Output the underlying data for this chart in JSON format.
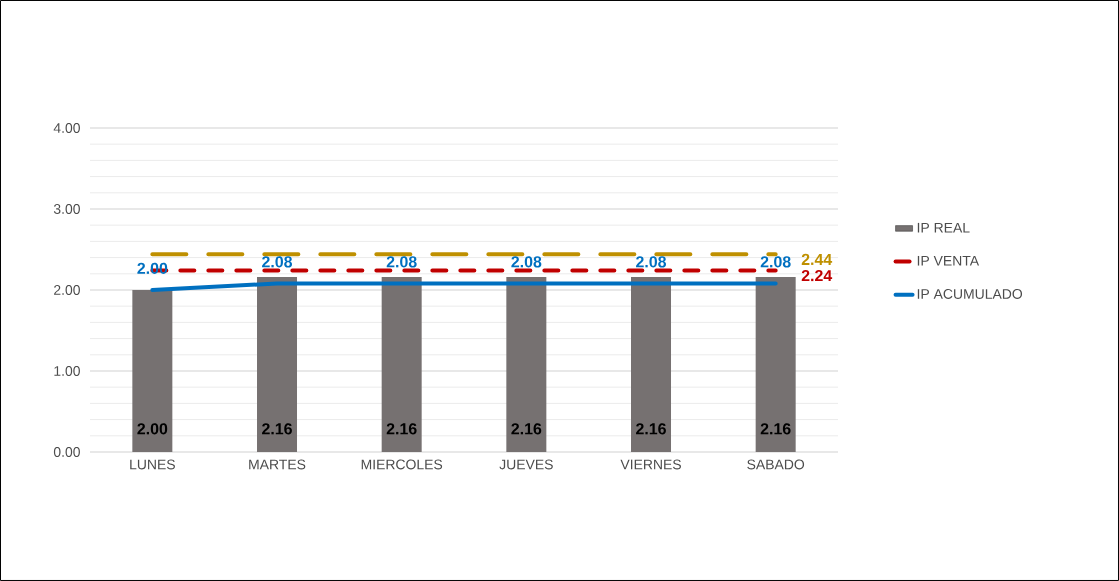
{
  "chart_data": {
    "type": "bar",
    "categories": [
      "LUNES",
      "MARTES",
      "MIERCOLES",
      "JUEVES",
      "VIERNES",
      "SABADO"
    ],
    "series": [
      {
        "name": "IP REAL",
        "color": "#767171",
        "values": [
          2.0,
          2.16,
          2.16,
          2.16,
          2.16,
          2.16
        ],
        "value_labels": [
          "2.00",
          "2.16",
          "2.16",
          "2.16",
          "2.16",
          "2.16"
        ]
      },
      {
        "type": "line",
        "line_style": "dashed",
        "color": "#bf9000",
        "values": [
          2.44,
          2.44,
          2.44,
          2.44,
          2.44,
          2.44
        ],
        "value_labels": [
          null,
          null,
          null,
          null,
          null,
          "2.44"
        ]
      },
      {
        "name": "IP VENTA",
        "type": "line",
        "line_style": "dashed",
        "color": "#c00000",
        "values": [
          2.24,
          2.24,
          2.24,
          2.24,
          2.24,
          2.24
        ],
        "value_labels": [
          null,
          null,
          null,
          null,
          null,
          "2.24"
        ]
      },
      {
        "name": "IP ACUMULADO",
        "type": "line",
        "line_style": "solid",
        "color": "#0070c0",
        "values": [
          2.0,
          2.08,
          2.08,
          2.08,
          2.08,
          2.08
        ],
        "value_labels": [
          "2.00",
          "2.08",
          "2.08",
          "2.08",
          "2.08",
          "2.08"
        ]
      }
    ],
    "ylim": [
      0,
      4
    ],
    "yticks": [
      {
        "value": 0,
        "label": "0.00"
      },
      {
        "value": 1,
        "label": "1.00"
      },
      {
        "value": 2,
        "label": "2.00"
      },
      {
        "value": 3,
        "label": "3.00"
      },
      {
        "value": 4,
        "label": "4.00"
      }
    ],
    "grid": "y",
    "legend": "right"
  }
}
